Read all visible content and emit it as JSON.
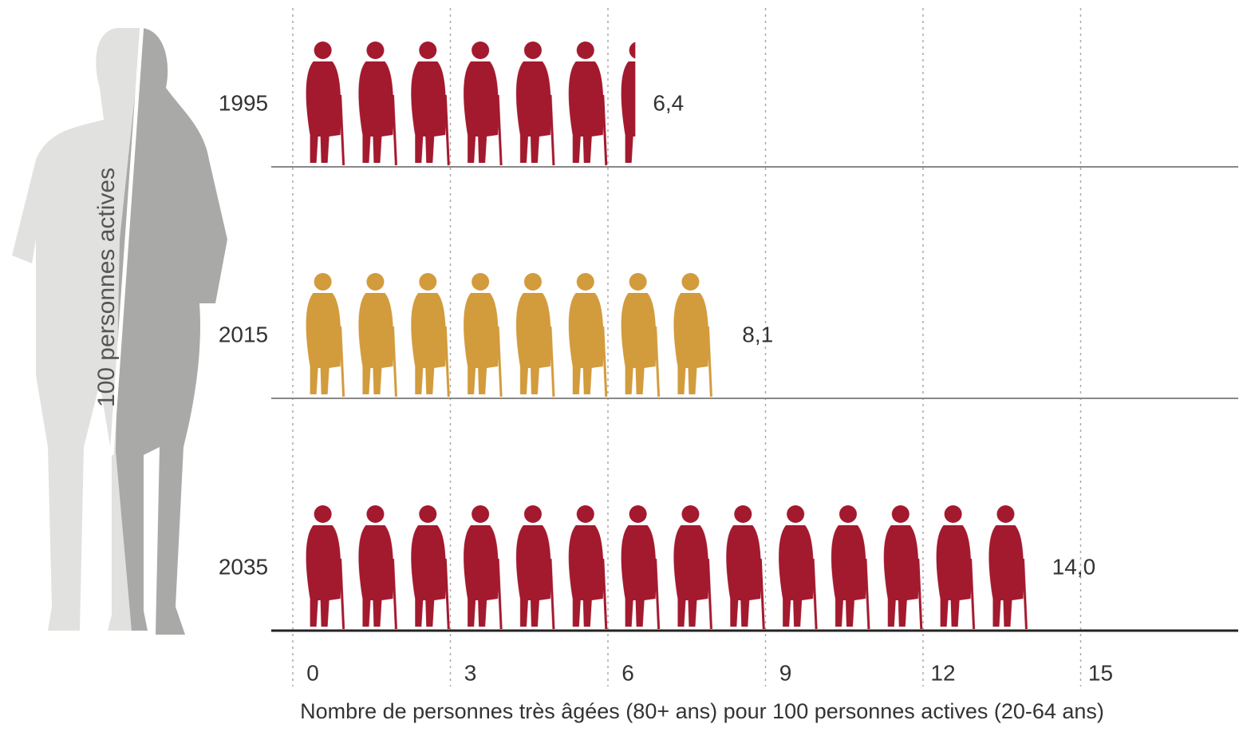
{
  "chart_data": {
    "type": "pictograph",
    "side_label": "100 personnes actives",
    "xlabel": "Nombre de personnes très âgées (80+ ans) pour 100 personnes actives (20-64 ans)",
    "categories": [
      "1995",
      "2015",
      "2035"
    ],
    "values": [
      6.4,
      8.1,
      14.0
    ],
    "value_labels": [
      "6,4",
      "8,1",
      "14,0"
    ],
    "colors": [
      "#a3192e",
      "#d29b3c",
      "#a3192e"
    ],
    "xlim": [
      0,
      18
    ],
    "xticks": [
      0,
      3,
      6,
      9,
      12,
      15
    ],
    "grid": true
  }
}
